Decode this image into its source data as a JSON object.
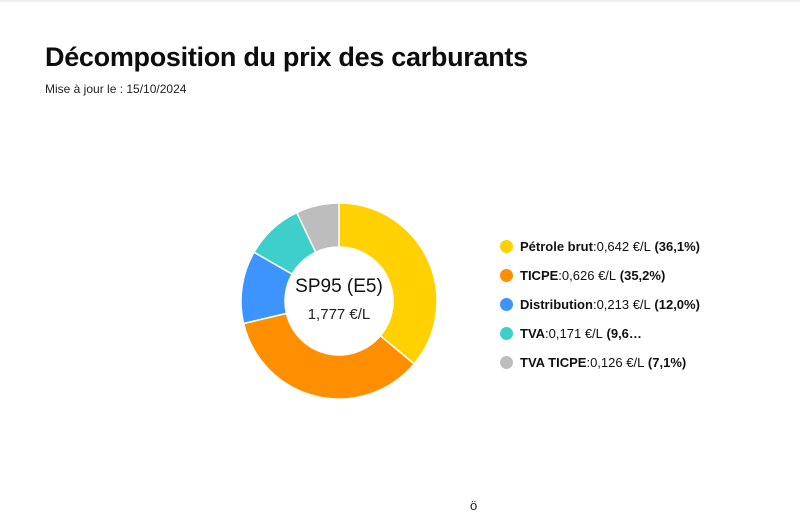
{
  "header": {
    "title": "Décomposition du prix des carburants",
    "subtitle": "Mise à jour le : 15/10/2024"
  },
  "center": {
    "product": "SP95 (E5)",
    "total": "1,777 €/L"
  },
  "legend": [
    {
      "name": "Pétrole brut",
      "sep": " : ",
      "value": "0,642 €/L",
      "pct": "(36,1%)"
    },
    {
      "name": "TICPE",
      "sep": " : ",
      "value": "0,626 €/L",
      "pct": "(35,2%)"
    },
    {
      "name": "Distribution",
      "sep": " : ",
      "value": "0,213 €/L",
      "pct": "(12,0%)"
    },
    {
      "name": "TVA",
      "sep": " : ",
      "value": "0,171 €/L",
      "pct": "(9,6…"
    },
    {
      "name": "TVA TICPE",
      "sep": " : ",
      "value": "0,126 €/L",
      "pct": "(7,1%)"
    }
  ],
  "footer_glyph": "ö",
  "chart_data": {
    "type": "pie",
    "title": "Décomposition du prix des carburants",
    "center_label": "SP95 (E5)",
    "center_value": "1,777 €/L",
    "unit": "€/L",
    "categories": [
      "Pétrole brut",
      "TICPE",
      "Distribution",
      "TVA",
      "TVA TICPE"
    ],
    "values": [
      0.642,
      0.626,
      0.213,
      0.171,
      0.126
    ],
    "percentages": [
      36.1,
      35.2,
      12.0,
      9.6,
      7.1
    ],
    "colors": [
      "#FFD100",
      "#FF8F00",
      "#3D94FF",
      "#3ECFCB",
      "#BDBDBD"
    ],
    "donut": true,
    "legend_position": "right"
  }
}
